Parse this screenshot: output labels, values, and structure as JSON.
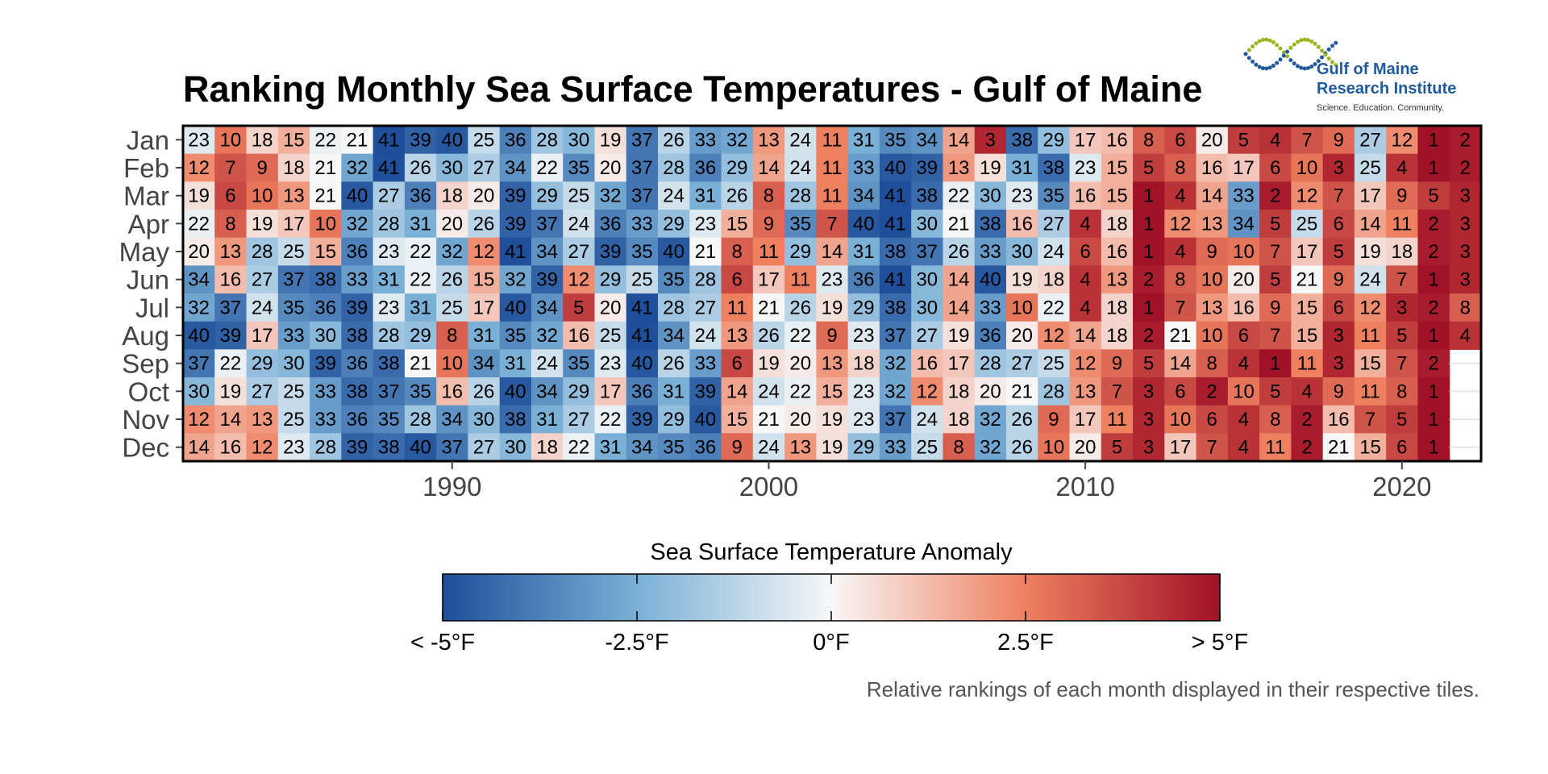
{
  "chart_data": {
    "type": "heatmap",
    "title": "Ranking Monthly Sea Surface Temperatures - Gulf of Maine",
    "caption": "Relative rankings of each month displayed in their respective tiles.",
    "months": [
      "Jan",
      "Feb",
      "Mar",
      "Apr",
      "May",
      "Jun",
      "Jul",
      "Aug",
      "Sep",
      "Oct",
      "Nov",
      "Dec"
    ],
    "years": [
      1982,
      1983,
      1984,
      1985,
      1986,
      1987,
      1988,
      1989,
      1990,
      1991,
      1992,
      1993,
      1994,
      1995,
      1996,
      1997,
      1998,
      1999,
      2000,
      2001,
      2002,
      2003,
      2004,
      2005,
      2006,
      2007,
      2008,
      2009,
      2010,
      2011,
      2012,
      2013,
      2014,
      2015,
      2016,
      2017,
      2018,
      2019,
      2020,
      2021,
      2022
    ],
    "x_ticks": [
      1990,
      2000,
      2010,
      2020
    ],
    "ranks": [
      [
        23,
        10,
        18,
        15,
        22,
        21,
        41,
        39,
        40,
        25,
        36,
        28,
        30,
        19,
        37,
        26,
        33,
        32,
        13,
        24,
        11,
        31,
        35,
        34,
        14,
        3,
        38,
        29,
        17,
        16,
        8,
        6,
        20,
        5,
        4,
        7,
        9,
        27,
        12,
        1,
        2
      ],
      [
        12,
        7,
        9,
        18,
        21,
        32,
        41,
        26,
        30,
        27,
        34,
        22,
        35,
        20,
        37,
        28,
        36,
        29,
        14,
        24,
        11,
        33,
        40,
        39,
        13,
        19,
        31,
        38,
        23,
        15,
        5,
        8,
        16,
        17,
        6,
        10,
        3,
        25,
        4,
        1,
        2
      ],
      [
        19,
        6,
        10,
        13,
        21,
        40,
        27,
        36,
        18,
        20,
        39,
        29,
        25,
        32,
        37,
        24,
        31,
        26,
        8,
        28,
        11,
        34,
        41,
        38,
        22,
        30,
        23,
        35,
        16,
        15,
        1,
        4,
        14,
        33,
        2,
        12,
        7,
        17,
        9,
        5,
        3
      ],
      [
        22,
        8,
        19,
        17,
        10,
        32,
        28,
        31,
        20,
        26,
        39,
        37,
        24,
        36,
        33,
        29,
        23,
        15,
        9,
        35,
        7,
        40,
        41,
        30,
        21,
        38,
        16,
        27,
        4,
        18,
        1,
        12,
        13,
        34,
        5,
        25,
        6,
        14,
        11,
        2,
        3
      ],
      [
        20,
        13,
        28,
        25,
        15,
        36,
        23,
        22,
        32,
        12,
        41,
        34,
        27,
        39,
        35,
        40,
        21,
        8,
        11,
        29,
        14,
        31,
        38,
        37,
        26,
        33,
        30,
        24,
        6,
        16,
        1,
        4,
        9,
        10,
        7,
        17,
        5,
        19,
        18,
        2,
        3
      ],
      [
        34,
        16,
        27,
        37,
        38,
        33,
        31,
        22,
        26,
        15,
        32,
        39,
        12,
        29,
        25,
        35,
        28,
        6,
        17,
        11,
        23,
        36,
        41,
        30,
        14,
        40,
        19,
        18,
        4,
        13,
        2,
        8,
        10,
        20,
        5,
        21,
        9,
        24,
        7,
        1,
        3
      ],
      [
        32,
        37,
        24,
        35,
        36,
        39,
        23,
        31,
        25,
        17,
        40,
        34,
        5,
        20,
        41,
        28,
        27,
        11,
        21,
        26,
        19,
        29,
        38,
        30,
        14,
        33,
        10,
        22,
        4,
        18,
        1,
        7,
        13,
        16,
        9,
        15,
        6,
        12,
        3,
        2,
        8
      ],
      [
        40,
        39,
        17,
        33,
        30,
        38,
        28,
        29,
        8,
        31,
        35,
        32,
        16,
        25,
        41,
        34,
        24,
        13,
        26,
        22,
        9,
        23,
        37,
        27,
        19,
        36,
        20,
        12,
        14,
        18,
        2,
        21,
        10,
        6,
        7,
        15,
        3,
        11,
        5,
        1,
        4
      ],
      [
        37,
        22,
        29,
        30,
        39,
        36,
        38,
        21,
        10,
        34,
        31,
        24,
        35,
        23,
        40,
        26,
        33,
        6,
        19,
        20,
        13,
        18,
        32,
        16,
        17,
        28,
        27,
        25,
        12,
        9,
        5,
        14,
        8,
        4,
        1,
        11,
        3,
        15,
        7,
        2,
        null
      ],
      [
        30,
        19,
        27,
        25,
        33,
        38,
        37,
        35,
        16,
        26,
        40,
        34,
        29,
        17,
        36,
        31,
        39,
        14,
        24,
        22,
        15,
        23,
        32,
        12,
        18,
        20,
        21,
        28,
        13,
        7,
        3,
        6,
        2,
        10,
        5,
        4,
        9,
        11,
        8,
        1,
        null
      ],
      [
        12,
        14,
        13,
        25,
        33,
        36,
        35,
        28,
        34,
        30,
        38,
        31,
        27,
        22,
        39,
        29,
        40,
        15,
        21,
        20,
        19,
        23,
        37,
        24,
        18,
        32,
        26,
        9,
        17,
        11,
        3,
        10,
        6,
        4,
        8,
        2,
        16,
        7,
        5,
        1,
        null
      ],
      [
        14,
        16,
        12,
        23,
        28,
        39,
        38,
        40,
        37,
        27,
        30,
        18,
        22,
        31,
        34,
        35,
        36,
        9,
        24,
        13,
        19,
        29,
        33,
        25,
        8,
        32,
        26,
        10,
        20,
        5,
        3,
        17,
        7,
        4,
        11,
        2,
        21,
        15,
        6,
        1,
        null
      ]
    ],
    "legend": {
      "title": "Sea Surface Temperature Anomaly",
      "ticks": [
        "< -5°F",
        "-2.5°F",
        "0°F",
        "2.5°F",
        "> 5°F"
      ],
      "colors": [
        "#1f4e9a",
        "#7ab0d6",
        "#f7f7f7",
        "#ee8060",
        "#a11127"
      ]
    }
  },
  "logo": {
    "line1": "Gulf of Maine",
    "line2": "Research Institute",
    "tagline": "Science. Education. Community."
  }
}
